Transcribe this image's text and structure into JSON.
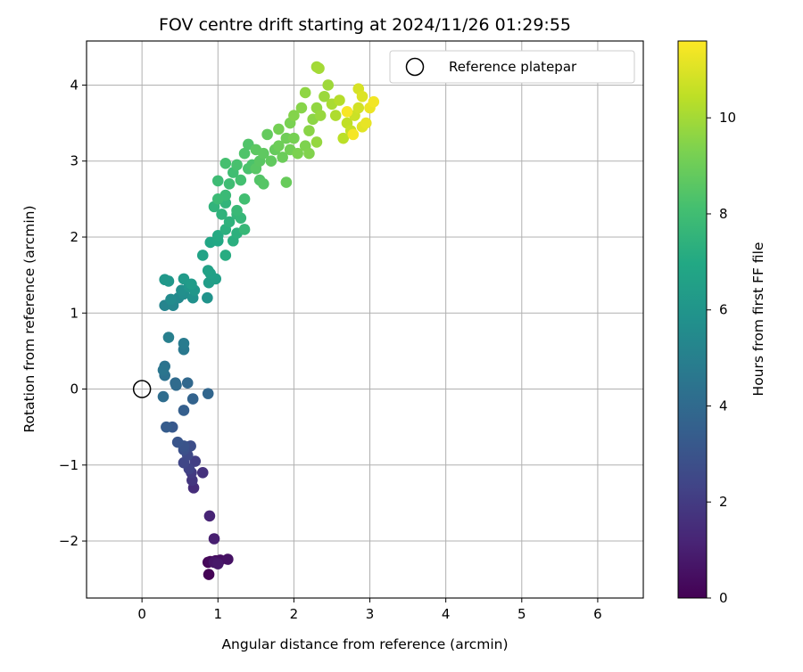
{
  "chart_data": {
    "type": "scatter",
    "title": "FOV centre drift starting at 2024/11/26 01:29:55",
    "xlabel": "Angular distance from reference (arcmin)",
    "ylabel": "Rotation from reference (arcmin)",
    "xlim": [
      -0.73,
      6.6
    ],
    "ylim": [
      -2.75,
      4.58
    ],
    "xticks": [
      "0",
      "1",
      "2",
      "3",
      "4",
      "5",
      "6"
    ],
    "yticks": [
      "−2",
      "−1",
      "0",
      "1",
      "2",
      "3",
      "4"
    ],
    "grid": true,
    "legend": {
      "position": "top-right",
      "entries": [
        "Reference platepar"
      ]
    },
    "reference_point": {
      "x": 0,
      "y": 0
    },
    "colorbar": {
      "label": "Hours from first FF file",
      "colormap": "viridis",
      "range": [
        0,
        11.6
      ],
      "ticks": [
        "0",
        "2",
        "4",
        "6",
        "8",
        "10"
      ]
    },
    "points": [
      [
        0.88,
        -2.44,
        0.05
      ],
      [
        0.87,
        -2.28,
        0.15
      ],
      [
        0.9,
        -2.27,
        0.25
      ],
      [
        0.97,
        -2.26,
        0.35
      ],
      [
        1.03,
        -2.25,
        0.45
      ],
      [
        1.13,
        -2.24,
        0.55
      ],
      [
        0.95,
        -2.28,
        0.65
      ],
      [
        1.0,
        -2.3,
        0.75
      ],
      [
        0.95,
        -1.97,
        1.0
      ],
      [
        0.89,
        -1.67,
        1.2
      ],
      [
        0.68,
        -1.3,
        1.5
      ],
      [
        0.8,
        -1.1,
        1.65
      ],
      [
        0.66,
        -1.2,
        1.8
      ],
      [
        0.65,
        -1.1,
        1.95
      ],
      [
        0.7,
        -0.95,
        2.1
      ],
      [
        0.62,
        -1.05,
        2.25
      ],
      [
        0.55,
        -0.97,
        2.4
      ],
      [
        0.6,
        -0.87,
        2.55
      ],
      [
        0.64,
        -0.75,
        2.7
      ],
      [
        0.55,
        -0.8,
        2.85
      ],
      [
        0.55,
        -0.75,
        2.95
      ],
      [
        0.47,
        -0.7,
        3.05
      ],
      [
        0.4,
        -0.5,
        3.2
      ],
      [
        0.32,
        -0.5,
        3.35
      ],
      [
        0.55,
        -0.28,
        3.5
      ],
      [
        0.67,
        -0.13,
        3.65
      ],
      [
        0.87,
        -0.06,
        3.8
      ],
      [
        0.6,
        0.08,
        3.9
      ],
      [
        0.45,
        0.05,
        4.0
      ],
      [
        0.44,
        0.08,
        4.05
      ],
      [
        0.28,
        -0.1,
        4.15
      ],
      [
        0.3,
        0.18,
        4.3
      ],
      [
        0.3,
        0.3,
        4.4
      ],
      [
        0.28,
        0.25,
        4.5
      ],
      [
        0.55,
        0.52,
        4.65
      ],
      [
        0.55,
        0.6,
        4.8
      ],
      [
        0.35,
        0.68,
        4.95
      ],
      [
        0.3,
        1.1,
        5.2
      ],
      [
        0.41,
        1.1,
        5.3
      ],
      [
        0.48,
        1.2,
        5.4
      ],
      [
        0.38,
        1.18,
        5.5
      ],
      [
        0.55,
        1.25,
        5.6
      ],
      [
        0.52,
        1.3,
        5.7
      ],
      [
        0.67,
        1.2,
        5.8
      ],
      [
        0.86,
        1.2,
        5.9
      ],
      [
        0.62,
        1.35,
        6.0
      ],
      [
        0.69,
        1.3,
        6.05
      ],
      [
        0.35,
        1.42,
        6.1
      ],
      [
        0.3,
        1.44,
        6.15
      ],
      [
        0.55,
        1.45,
        6.25
      ],
      [
        0.65,
        1.38,
        6.3
      ],
      [
        0.88,
        1.4,
        6.4
      ],
      [
        0.97,
        1.45,
        6.5
      ],
      [
        0.9,
        1.52,
        6.55
      ],
      [
        0.87,
        1.56,
        6.6
      ],
      [
        0.8,
        1.76,
        6.7
      ],
      [
        0.9,
        1.93,
        6.85
      ],
      [
        1.0,
        1.95,
        6.95
      ],
      [
        1.0,
        2.02,
        7.05
      ],
      [
        1.1,
        1.76,
        7.15
      ],
      [
        1.2,
        1.95,
        7.25
      ],
      [
        1.1,
        2.1,
        7.3
      ],
      [
        1.25,
        2.05,
        7.35
      ],
      [
        1.15,
        2.2,
        7.4
      ],
      [
        1.05,
        2.3,
        7.45
      ],
      [
        0.95,
        2.4,
        7.5
      ],
      [
        1.1,
        2.45,
        7.55
      ],
      [
        1.25,
        2.3,
        7.6
      ],
      [
        1.3,
        2.25,
        7.65
      ],
      [
        1.35,
        2.1,
        7.7
      ],
      [
        1.25,
        2.35,
        7.75
      ],
      [
        1.1,
        2.55,
        7.8
      ],
      [
        1.0,
        2.5,
        7.85
      ],
      [
        1.0,
        2.74,
        7.9
      ],
      [
        1.15,
        2.7,
        7.95
      ],
      [
        1.2,
        2.85,
        8.0
      ],
      [
        1.35,
        2.5,
        8.05
      ],
      [
        1.3,
        2.75,
        8.1
      ],
      [
        1.1,
        2.97,
        8.15
      ],
      [
        1.25,
        2.95,
        8.2
      ],
      [
        1.4,
        2.9,
        8.25
      ],
      [
        1.45,
        2.95,
        8.3
      ],
      [
        1.35,
        3.1,
        8.35
      ],
      [
        1.4,
        3.22,
        8.4
      ],
      [
        1.55,
        2.75,
        8.45
      ],
      [
        1.6,
        2.7,
        8.5
      ],
      [
        1.5,
        2.9,
        8.55
      ],
      [
        1.55,
        3.0,
        8.6
      ],
      [
        1.5,
        3.15,
        8.65
      ],
      [
        1.6,
        3.1,
        8.7
      ],
      [
        1.7,
        3.0,
        8.75
      ],
      [
        1.65,
        3.35,
        8.8
      ],
      [
        1.75,
        3.15,
        8.85
      ],
      [
        1.9,
        2.72,
        8.9
      ],
      [
        1.85,
        3.05,
        8.95
      ],
      [
        1.8,
        3.2,
        9.0
      ],
      [
        1.9,
        3.3,
        9.05
      ],
      [
        1.95,
        3.15,
        9.1
      ],
      [
        1.8,
        3.42,
        9.15
      ],
      [
        2.0,
        3.3,
        9.2
      ],
      [
        1.95,
        3.5,
        9.25
      ],
      [
        2.05,
        3.1,
        9.3
      ],
      [
        2.15,
        3.2,
        9.35
      ],
      [
        2.2,
        3.1,
        9.4
      ],
      [
        2.0,
        3.6,
        9.45
      ],
      [
        2.1,
        3.7,
        9.5
      ],
      [
        2.2,
        3.4,
        9.55
      ],
      [
        2.25,
        3.55,
        9.6
      ],
      [
        2.15,
        3.9,
        9.65
      ],
      [
        2.3,
        3.7,
        9.7
      ],
      [
        2.3,
        3.25,
        9.75
      ],
      [
        2.35,
        3.6,
        9.8
      ],
      [
        2.4,
        3.85,
        9.85
      ],
      [
        2.45,
        4.0,
        9.9
      ],
      [
        2.3,
        4.24,
        9.95
      ],
      [
        2.33,
        4.22,
        10.0
      ],
      [
        2.5,
        3.75,
        10.1
      ],
      [
        2.55,
        3.6,
        10.2
      ],
      [
        2.6,
        3.8,
        10.3
      ],
      [
        2.65,
        3.3,
        10.4
      ],
      [
        2.7,
        3.5,
        10.5
      ],
      [
        2.75,
        3.4,
        10.6
      ],
      [
        2.8,
        3.6,
        10.7
      ],
      [
        2.85,
        3.7,
        10.8
      ],
      [
        2.85,
        3.95,
        10.9
      ],
      [
        2.9,
        3.85,
        11.0
      ],
      [
        2.9,
        3.45,
        11.1
      ],
      [
        2.95,
        3.5,
        11.2
      ],
      [
        3.0,
        3.7,
        11.3
      ],
      [
        3.05,
        3.78,
        11.4
      ],
      [
        2.78,
        3.35,
        11.45
      ],
      [
        2.7,
        3.65,
        11.5
      ]
    ]
  }
}
